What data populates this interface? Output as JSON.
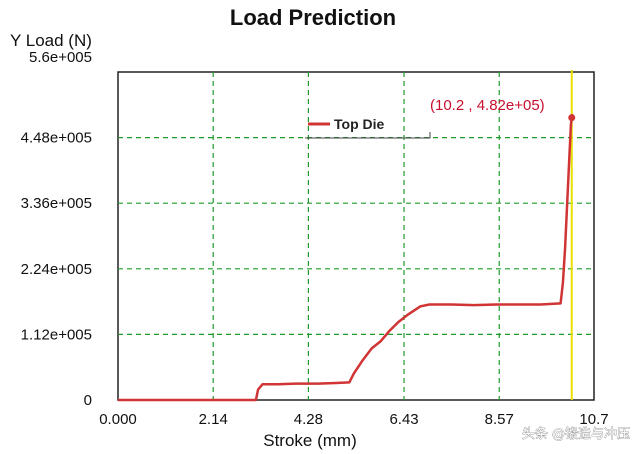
{
  "chart_data": {
    "type": "line",
    "title": "Load Prediction",
    "ylabel": "Y Load (N)",
    "xlabel": "Stroke (mm)",
    "xlim": [
      0,
      10.7
    ],
    "ylim": [
      0,
      560000
    ],
    "x_ticks": [
      0,
      2.14,
      4.28,
      6.43,
      8.57,
      10.7
    ],
    "x_tick_labels": [
      "0.000",
      "2.14",
      "4.28",
      "6.43",
      "8.57",
      "10.7"
    ],
    "y_ticks": [
      0,
      112000,
      224000,
      336000,
      448000,
      560000
    ],
    "y_tick_labels": [
      "0",
      "1.12e+005",
      "2.24e+005",
      "3.36e+005",
      "4.48e+005",
      "5.6e+005"
    ],
    "grid": true,
    "legend_position": "top-center",
    "series": [
      {
        "name": "Top Die",
        "color": "#d03434",
        "x": [
          0,
          3.1,
          3.15,
          3.25,
          3.6,
          4.0,
          4.5,
          4.9,
          5.2,
          5.3,
          5.5,
          5.7,
          5.9,
          6.1,
          6.3,
          6.5,
          6.7,
          6.8,
          7.0,
          7.5,
          8.0,
          8.5,
          9.0,
          9.5,
          9.95,
          10.0,
          10.05,
          10.1,
          10.15,
          10.18,
          10.2,
          10.22
        ],
        "y": [
          0,
          0,
          18000,
          27000,
          27000,
          28000,
          28000,
          29000,
          30000,
          45000,
          68000,
          88000,
          100000,
          118000,
          133000,
          145000,
          155000,
          160000,
          163000,
          163000,
          162000,
          163000,
          163000,
          163000,
          165000,
          200000,
          260000,
          340000,
          420000,
          470000,
          482000,
          488000
        ]
      }
    ],
    "cursor": {
      "x": 10.2,
      "color": "#e8e000"
    },
    "annotations": [
      {
        "text": "(10.2 , 4.82e+05)",
        "x": 10.2,
        "y": 482000
      }
    ]
  },
  "watermark": "头条 @锻造与冲压"
}
